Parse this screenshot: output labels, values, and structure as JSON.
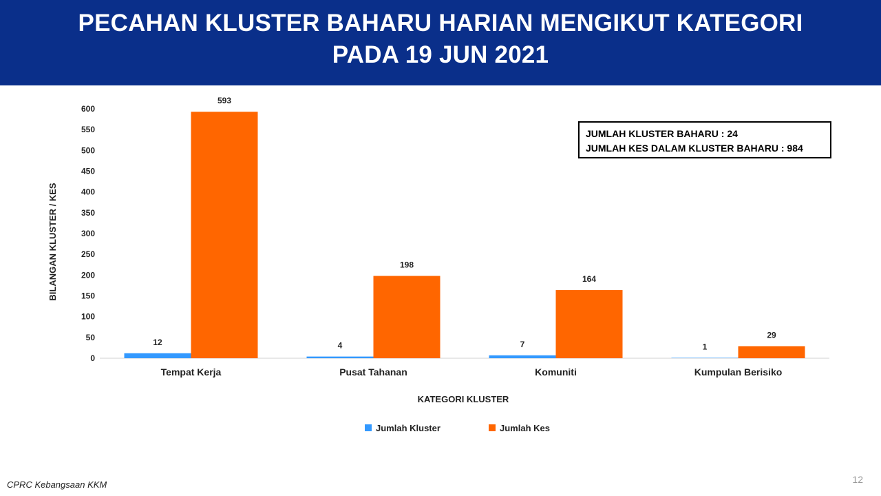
{
  "header": {
    "title_line1": "PECAHAN KLUSTER BAHARU HARIAN MENGIKUT KATEGORI",
    "title_line2": "PADA 19 JUN 2021"
  },
  "summary": {
    "line1": "JUMLAH KLUSTER BAHARU : 24",
    "line2": "JUMLAH KES DALAM KLUSTER BAHARU : 984"
  },
  "footer": {
    "source": "CPRC Kebangsaan KKM"
  },
  "page_number": "12",
  "colors": {
    "header_bg": "#0a2f8a",
    "series1": "#3399ff",
    "series2": "#ff6600"
  },
  "chart_data": {
    "type": "bar",
    "xlabel": "KATEGORI KLUSTER",
    "ylabel": "BILANGAN KLUSTER / KES",
    "ylim": [
      0,
      600
    ],
    "yticks": [
      0,
      50,
      100,
      150,
      200,
      250,
      300,
      350,
      400,
      450,
      500,
      550,
      600
    ],
    "grid": false,
    "legend_position": "bottom",
    "categories": [
      "Tempat Kerja",
      "Pusat Tahanan",
      "Komuniti",
      "Kumpulan Berisiko"
    ],
    "series": [
      {
        "name": "Jumlah Kluster",
        "color": "#3399ff",
        "values": [
          12,
          4,
          7,
          1
        ]
      },
      {
        "name": "Jumlah Kes",
        "color": "#ff6600",
        "values": [
          593,
          198,
          164,
          29
        ]
      }
    ]
  }
}
